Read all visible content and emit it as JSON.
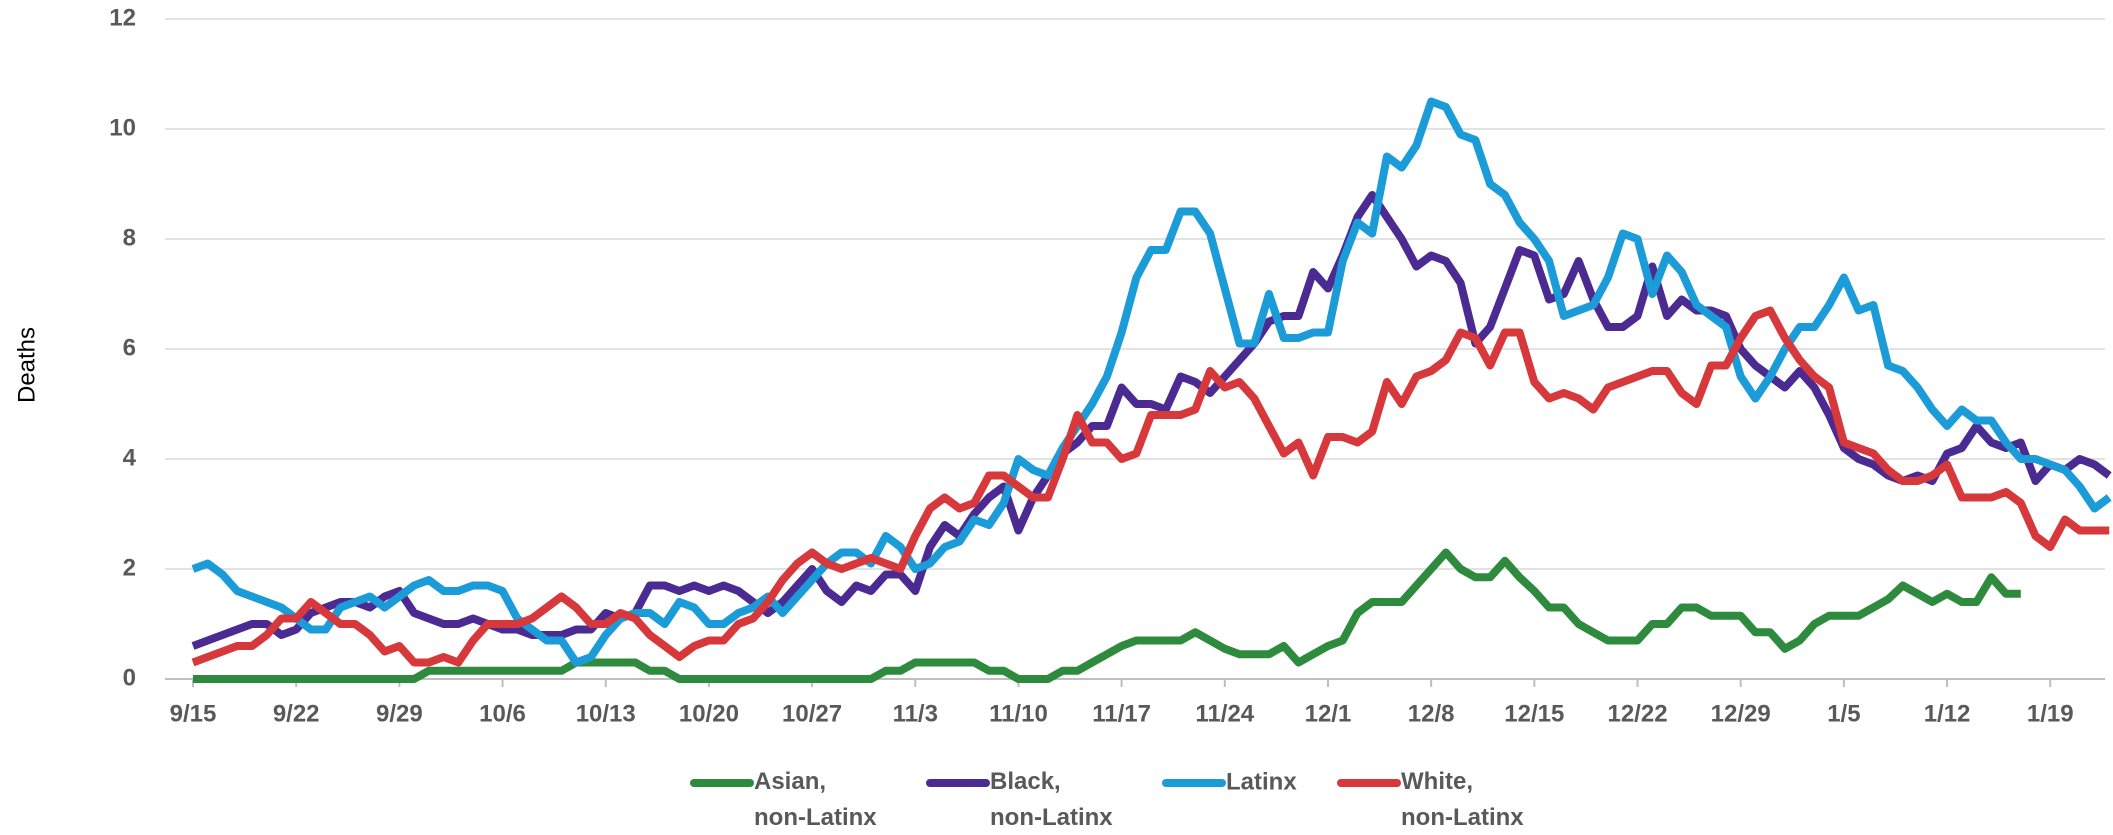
{
  "chart_data": {
    "type": "line",
    "y_label": "Deaths",
    "categories": [
      "9/15",
      null,
      null,
      null,
      null,
      null,
      null,
      "9/22",
      null,
      null,
      null,
      null,
      null,
      null,
      "9/29",
      null,
      null,
      null,
      null,
      null,
      null,
      "10/6",
      null,
      null,
      null,
      null,
      null,
      null,
      "10/13",
      null,
      null,
      null,
      null,
      null,
      null,
      "10/20",
      null,
      null,
      null,
      null,
      null,
      null,
      "10/27",
      null,
      null,
      null,
      null,
      null,
      null,
      "11/3",
      null,
      null,
      null,
      null,
      null,
      null,
      "11/10",
      null,
      null,
      null,
      null,
      null,
      null,
      "11/17",
      null,
      null,
      null,
      null,
      null,
      null,
      "11/24",
      null,
      null,
      null,
      null,
      null,
      null,
      "12/1",
      null,
      null,
      null,
      null,
      null,
      null,
      "12/8",
      null,
      null,
      null,
      null,
      null,
      null,
      "12/15",
      null,
      null,
      null,
      null,
      null,
      null,
      "12/22",
      null,
      null,
      null,
      null,
      null,
      null,
      "12/29",
      null,
      null,
      null,
      null,
      null,
      null,
      "1/5",
      null,
      null,
      null,
      null,
      null,
      null,
      "1/12",
      null,
      null,
      null,
      null,
      null,
      null,
      "1/19",
      null,
      null,
      null,
      null
    ],
    "series": [
      {
        "name": "Asian, non-Latinx",
        "color": "#2e8b3e",
        "values": [
          0,
          0,
          0,
          0,
          0,
          0,
          0,
          0,
          0,
          0,
          0,
          0,
          0,
          0,
          0,
          0,
          0.15,
          0.15,
          0.15,
          0.15,
          0.15,
          0.15,
          0.15,
          0.15,
          0.15,
          0.15,
          0.3,
          0.3,
          0.3,
          0.3,
          0.3,
          0.15,
          0.15,
          0,
          0,
          0,
          0,
          0,
          0,
          0,
          0,
          0,
          0,
          0,
          0,
          0,
          0,
          0.15,
          0.15,
          0.3,
          0.3,
          0.3,
          0.3,
          0.3,
          0.15,
          0.15,
          0,
          0,
          0,
          0.15,
          0.15,
          0.3,
          0.45,
          0.6,
          0.7,
          0.7,
          0.7,
          0.7,
          0.85,
          0.7,
          0.55,
          0.45,
          0.45,
          0.45,
          0.6,
          0.3,
          0.45,
          0.6,
          0.7,
          1.2,
          1.4,
          1.4,
          1.4,
          1.7,
          2.0,
          2.3,
          2.0,
          1.85,
          1.85,
          2.15,
          1.85,
          1.6,
          1.3,
          1.3,
          1.0,
          0.85,
          0.7,
          0.7,
          0.7,
          1.0,
          1.0,
          1.3,
          1.3,
          1.15,
          1.15,
          1.15,
          0.85,
          0.85,
          0.55,
          0.7,
          1.0,
          1.15,
          1.15,
          1.15,
          1.3,
          1.45,
          1.7,
          1.55,
          1.4,
          1.55,
          1.4,
          1.4,
          1.85,
          1.55,
          1.55,
          null,
          null,
          null,
          null,
          null,
          null
        ]
      },
      {
        "name": "Black, non-Latinx",
        "color": "#4b2a92",
        "values": [
          0.6,
          0.7,
          0.8,
          0.9,
          1.0,
          1.0,
          0.8,
          0.9,
          1.2,
          1.3,
          1.4,
          1.4,
          1.3,
          1.5,
          1.6,
          1.2,
          1.1,
          1.0,
          1.0,
          1.1,
          1.0,
          0.9,
          0.9,
          0.8,
          0.8,
          0.8,
          0.9,
          0.9,
          1.2,
          1.1,
          1.2,
          1.7,
          1.7,
          1.6,
          1.7,
          1.6,
          1.7,
          1.6,
          1.4,
          1.2,
          1.4,
          1.7,
          2.0,
          1.6,
          1.4,
          1.7,
          1.6,
          1.9,
          1.9,
          1.6,
          2.4,
          2.8,
          2.6,
          3.0,
          3.3,
          3.5,
          2.7,
          3.3,
          3.7,
          4.1,
          4.3,
          4.6,
          4.6,
          5.3,
          5.0,
          5.0,
          4.9,
          5.5,
          5.4,
          5.2,
          5.5,
          5.8,
          6.1,
          6.5,
          6.6,
          6.6,
          7.4,
          7.1,
          7.7,
          8.4,
          8.8,
          8.4,
          8.0,
          7.5,
          7.7,
          7.6,
          7.2,
          6.1,
          6.4,
          7.1,
          7.8,
          7.7,
          6.9,
          7.0,
          7.6,
          6.9,
          6.4,
          6.4,
          6.6,
          7.5,
          6.6,
          6.9,
          6.7,
          6.7,
          6.6,
          6.0,
          5.7,
          5.5,
          5.3,
          5.6,
          5.3,
          4.8,
          4.2,
          4.0,
          3.9,
          3.7,
          3.6,
          3.7,
          3.6,
          4.1,
          4.2,
          4.6,
          4.3,
          4.2,
          4.3,
          3.6,
          3.9,
          3.8,
          4.0,
          3.9,
          3.7
        ]
      },
      {
        "name": "Latinx",
        "color": "#1b9bd7",
        "values": [
          2.0,
          2.1,
          1.9,
          1.6,
          1.5,
          1.4,
          1.3,
          1.1,
          0.9,
          0.9,
          1.3,
          1.4,
          1.5,
          1.3,
          1.5,
          1.7,
          1.8,
          1.6,
          1.6,
          1.7,
          1.7,
          1.6,
          1.1,
          0.9,
          0.7,
          0.7,
          0.3,
          0.4,
          0.8,
          1.1,
          1.2,
          1.2,
          1.0,
          1.4,
          1.3,
          1.0,
          1.0,
          1.2,
          1.3,
          1.5,
          1.2,
          1.5,
          1.8,
          2.1,
          2.3,
          2.3,
          2.1,
          2.6,
          2.4,
          2.0,
          2.1,
          2.4,
          2.5,
          2.9,
          2.8,
          3.2,
          4.0,
          3.8,
          3.7,
          4.2,
          4.6,
          5.0,
          5.5,
          6.3,
          7.3,
          7.8,
          7.8,
          8.5,
          8.5,
          8.1,
          7.1,
          6.1,
          6.1,
          7.0,
          6.2,
          6.2,
          6.3,
          6.3,
          7.6,
          8.3,
          8.1,
          9.5,
          9.3,
          9.7,
          10.5,
          10.4,
          9.9,
          9.8,
          9.0,
          8.8,
          8.3,
          8.0,
          7.6,
          6.6,
          6.7,
          6.8,
          7.3,
          8.1,
          8.0,
          7.0,
          7.7,
          7.4,
          6.8,
          6.6,
          6.4,
          5.5,
          5.1,
          5.5,
          6.0,
          6.4,
          6.4,
          6.8,
          7.3,
          6.7,
          6.8,
          5.7,
          5.6,
          5.3,
          4.9,
          4.6,
          4.9,
          4.7,
          4.7,
          4.3,
          4.0,
          4.0,
          3.9,
          3.8,
          3.5,
          3.1,
          3.3
        ]
      },
      {
        "name": "White, non-Latinx",
        "color": "#d6383b",
        "values": [
          0.3,
          0.4,
          0.5,
          0.6,
          0.6,
          0.8,
          1.1,
          1.1,
          1.4,
          1.2,
          1.0,
          1.0,
          0.8,
          0.5,
          0.6,
          0.3,
          0.3,
          0.4,
          0.3,
          0.7,
          1.0,
          1.0,
          1.0,
          1.1,
          1.3,
          1.5,
          1.3,
          1.0,
          1.0,
          1.2,
          1.1,
          0.8,
          0.6,
          0.4,
          0.6,
          0.7,
          0.7,
          1.0,
          1.1,
          1.4,
          1.8,
          2.1,
          2.3,
          2.1,
          2.0,
          2.1,
          2.2,
          2.1,
          2.0,
          2.6,
          3.1,
          3.3,
          3.1,
          3.2,
          3.7,
          3.7,
          3.5,
          3.3,
          3.3,
          4.0,
          4.8,
          4.3,
          4.3,
          4.0,
          4.1,
          4.8,
          4.8,
          4.8,
          4.9,
          5.6,
          5.3,
          5.4,
          5.1,
          4.6,
          4.1,
          4.3,
          3.7,
          4.4,
          4.4,
          4.3,
          4.5,
          5.4,
          5.0,
          5.5,
          5.6,
          5.8,
          6.3,
          6.2,
          5.7,
          6.3,
          6.3,
          5.4,
          5.1,
          5.2,
          5.1,
          4.9,
          5.3,
          5.4,
          5.5,
          5.6,
          5.6,
          5.2,
          5.0,
          5.7,
          5.7,
          6.2,
          6.6,
          6.7,
          6.2,
          5.8,
          5.5,
          5.3,
          4.3,
          4.2,
          4.1,
          3.8,
          3.6,
          3.6,
          3.7,
          3.9,
          3.3,
          3.3,
          3.3,
          3.4,
          3.2,
          2.6,
          2.4,
          2.9,
          2.7,
          2.7,
          2.7
        ]
      }
    ],
    "ylim": [
      0,
      12
    ],
    "yticks": [
      0,
      2,
      4,
      6,
      8,
      10,
      12
    ],
    "grid": true
  }
}
